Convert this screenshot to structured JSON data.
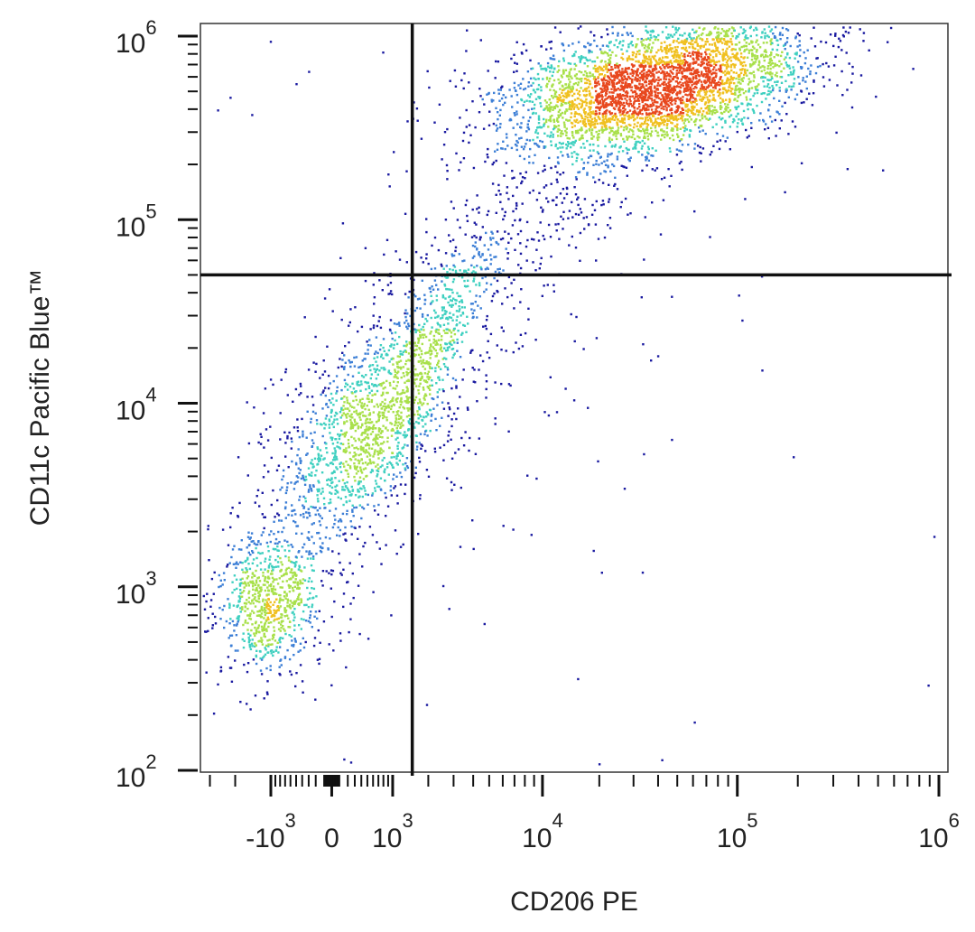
{
  "chart_data": {
    "type": "scatter",
    "subtype": "flow-cytometry-density-dot-plot",
    "xlabel": "CD206 PE",
    "ylabel": "CD11c Pacific Blue™",
    "x_scale": "biexponential",
    "y_scale": "log",
    "xlim": [
      -3000,
      1200000
    ],
    "ylim": [
      100,
      1400000
    ],
    "x_ticks": [
      {
        "value": -1000,
        "base": "-10",
        "exp": "3"
      },
      {
        "value": 0,
        "base": "0",
        "exp": ""
      },
      {
        "value": 1000,
        "base": "10",
        "exp": "3"
      },
      {
        "value": 10000,
        "base": "10",
        "exp": "4"
      },
      {
        "value": 100000,
        "base": "10",
        "exp": "5"
      },
      {
        "value": 1000000,
        "base": "10",
        "exp": "6"
      }
    ],
    "y_ticks": [
      {
        "value": 100,
        "base": "10",
        "exp": "2"
      },
      {
        "value": 1000,
        "base": "10",
        "exp": "3"
      },
      {
        "value": 10000,
        "base": "10",
        "exp": "4"
      },
      {
        "value": 100000,
        "base": "10",
        "exp": "5"
      },
      {
        "value": 1000000,
        "base": "10",
        "exp": "6"
      }
    ],
    "quadrant_gate": {
      "x": 1500,
      "y": 50000
    },
    "colors": {
      "low": "#1a1aa0",
      "mid_low": "#3d7fd6",
      "mid": "#3fd0c0",
      "mid_high": "#a8e04a",
      "high": "#f0c020",
      "peak": "#e8481e",
      "gate": "#111111",
      "frame": "#333333"
    },
    "populations": [
      {
        "name": "",
        "x_center": -1100,
        "y_center": 800,
        "count": 650,
        "density": "high"
      },
      {
        "name": "",
        "x_center": 400,
        "y_center": 7000,
        "count": 700,
        "density": "medium"
      },
      {
        "name": "",
        "x_center": 2200,
        "y_center": 25000,
        "count": 420,
        "density": "medium"
      },
      {
        "name": "",
        "x_center": 40000,
        "y_center": 550000,
        "count": 3600,
        "density": "peak"
      }
    ],
    "grid": false,
    "legend": "none"
  }
}
